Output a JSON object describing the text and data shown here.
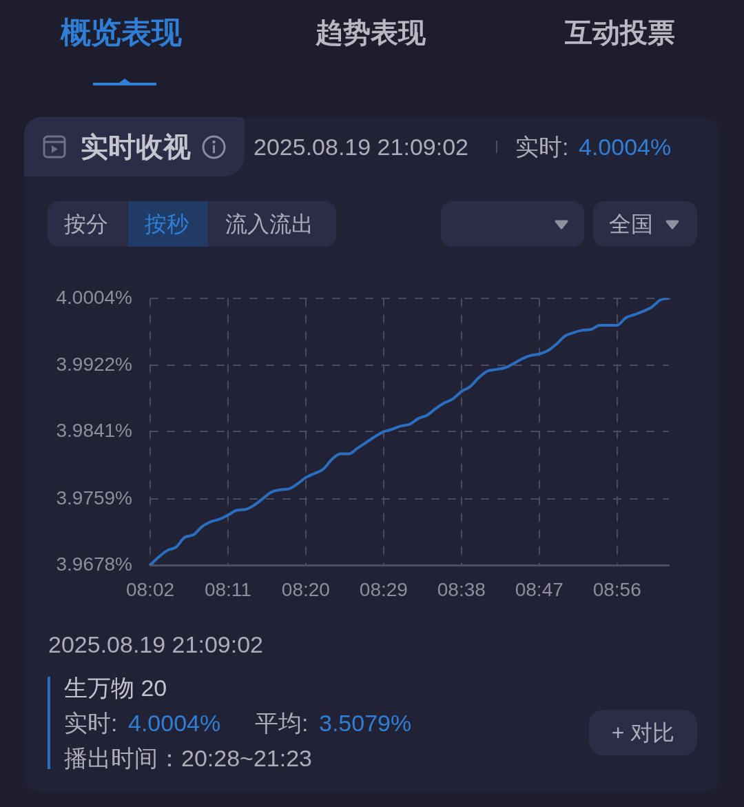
{
  "chart_data": {
    "type": "line",
    "title": "实时收视",
    "annotations": [
      "概览表现",
      "趋势表现",
      "互动投票",
      "2025.08.19 21:09:02",
      "实时:",
      "4.0004%",
      "按分",
      "按秒",
      "流入流出",
      "全国",
      "2025.08.19 21:09:02",
      "实时:",
      "4.0004%",
      "平均:",
      "3.5079%",
      "播出时间：20:28~21:23",
      "+ 对比"
    ],
    "categories": [
      "08:02",
      null,
      null,
      null,
      null,
      null,
      null,
      null,
      null,
      "08:11",
      null,
      null,
      null,
      null,
      null,
      null,
      null,
      null,
      "08:20",
      null,
      null,
      null,
      null,
      null,
      null,
      null,
      null,
      "08:29",
      null,
      null,
      null,
      null,
      null,
      null,
      null,
      null,
      "08:38",
      null,
      null,
      null,
      null,
      null,
      null,
      null,
      null,
      "08:47",
      null,
      null,
      null,
      null,
      null,
      null,
      null,
      null,
      "08:56",
      null,
      null,
      null,
      null,
      null,
      null
    ],
    "series": [
      {
        "name": "生万物 20",
        "color": "#2a6ebf",
        "values": [
          3.9678,
          3.9688,
          3.9696,
          3.97,
          3.9712,
          3.9715,
          3.9725,
          3.9731,
          3.9734,
          3.9739,
          3.9745,
          3.9746,
          3.9751,
          3.9759,
          3.9767,
          3.977,
          3.9771,
          3.9777,
          3.9785,
          3.979,
          3.9795,
          3.9807,
          3.9814,
          3.9814,
          3.9821,
          3.9828,
          3.9835,
          3.9841,
          3.9844,
          3.9848,
          3.985,
          3.9857,
          3.9861,
          3.9869,
          3.9876,
          3.9881,
          3.989,
          3.9896,
          3.9907,
          3.9915,
          3.9917,
          3.9919,
          3.9924,
          3.993,
          3.9934,
          3.9936,
          3.994,
          3.9948,
          3.9958,
          3.9962,
          3.9965,
          3.9966,
          3.9971,
          3.9971,
          3.9971,
          3.998,
          3.9984,
          3.9988,
          3.9993,
          4.0002,
          4.0004
        ]
      }
    ],
    "ylim": [
      3.9678,
      4.0004
    ],
    "yticks": [
      {
        "value": 3.9678,
        "label": "3.9678%"
      },
      {
        "value": 3.9759,
        "label": "3.9759%"
      },
      {
        "value": 3.9841,
        "label": "3.9841%"
      },
      {
        "value": 3.9922,
        "label": "3.9922%"
      },
      {
        "value": 4.0004,
        "label": "4.0004%"
      }
    ],
    "grid": true,
    "legend": "bottom",
    "marker": "none",
    "line_style": "solid"
  }
}
